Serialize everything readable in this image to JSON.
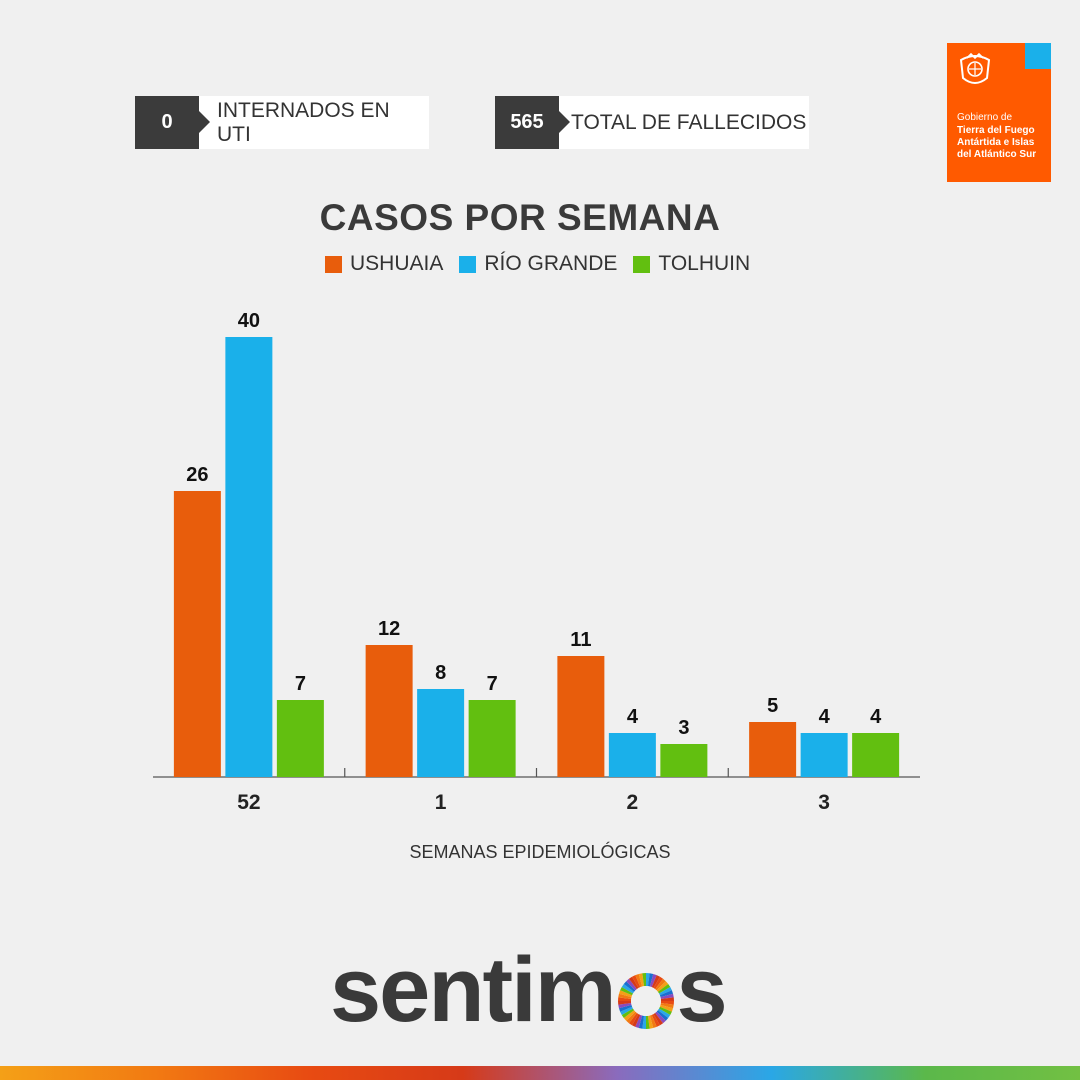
{
  "stats": [
    {
      "value": "0",
      "label": "INTERNADOS EN UTI"
    },
    {
      "value": "565",
      "label": "TOTAL DE FALLECIDOS"
    }
  ],
  "logo": {
    "line1": "Gobierno de",
    "line2": "Tierra del Fuego Antártida e Islas del Atlántico Sur",
    "icon": "provincial-seal-icon",
    "color": "#ff5a00",
    "fold_color": "#1ab0ea"
  },
  "brand": {
    "text_before": "sentim",
    "text_after": "s",
    "o_icon": "color-wheel-icon"
  },
  "colors": {
    "ushuaia": "#e85d0c",
    "rio_grande": "#1ab0ea",
    "tolhuin": "#62bf10"
  },
  "chart_data": {
    "type": "bar",
    "title": "CASOS POR SEMANA",
    "xlabel": "SEMANAS EPIDEMIOLÓGICAS",
    "ylabel": "",
    "categories": [
      "52",
      "1",
      "2",
      "3"
    ],
    "series": [
      {
        "name": "USHUAIA",
        "color": "#e85d0c",
        "values": [
          26,
          12,
          11,
          5
        ]
      },
      {
        "name": "RÍO GRANDE",
        "color": "#1ab0ea",
        "values": [
          40,
          8,
          4,
          4
        ]
      },
      {
        "name": "TOLHUIN",
        "color": "#62bf10",
        "values": [
          7,
          7,
          3,
          4
        ]
      }
    ],
    "ylim": [
      0,
      40
    ],
    "grid": false,
    "legend": "top-center",
    "data_labels": true
  }
}
